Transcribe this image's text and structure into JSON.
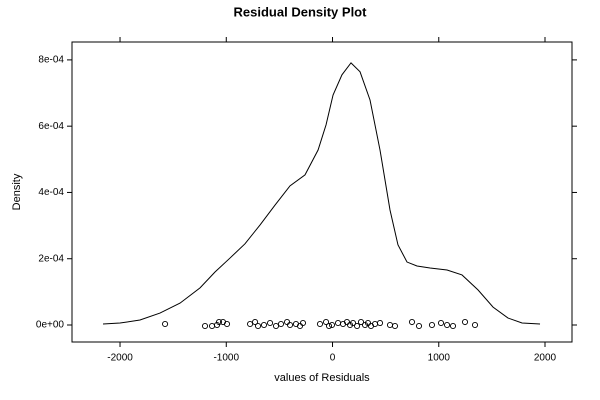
{
  "chart_data": {
    "type": "density",
    "title": "Residual Density Plot",
    "x_label": "values of Residuals",
    "y_label": "Density",
    "color": "#000000",
    "xlim": [
      -2452,
      2254
    ],
    "ylim": [
      -5.13e-05,
      0.000854
    ],
    "xticks": [
      -2000,
      -1000,
      0,
      1000,
      2000
    ],
    "yticks": [
      {
        "value": 0,
        "label": "0e+00"
      },
      {
        "value": 0.0002,
        "label": "2e-04"
      },
      {
        "value": 0.0004,
        "label": "4e-04"
      },
      {
        "value": 0.0006,
        "label": "6e-04"
      },
      {
        "value": 0.0008,
        "label": "8e-04"
      }
    ],
    "curve": {
      "x": [
        -2160,
        -2000,
        -1812,
        -1624,
        -1435,
        -1247,
        -1106,
        -965,
        -824,
        -682,
        -541,
        -400,
        -259,
        -136,
        -61,
        5,
        89,
        174,
        259,
        353,
        447,
        541,
        616,
        701,
        795,
        918,
        1078,
        1219,
        1369,
        1511,
        1652,
        1784,
        1953
      ],
      "y": [
        3e-06,
        6e-06,
        1.5e-05,
        3.6e-05,
        6.6e-05,
        0.000112,
        0.00016,
        0.000202,
        0.000245,
        0.000302,
        0.000362,
        0.00042,
        0.000453,
        0.000528,
        0.000604,
        0.000694,
        0.000755,
        0.000791,
        0.000764,
        0.000679,
        0.000528,
        0.000347,
        0.000242,
        0.00019,
        0.000178,
        0.000172,
        0.000166,
        0.000151,
        0.000106,
        5.4e-05,
        2.1e-05,
        6e-06,
        3e-06
      ]
    },
    "points": {
      "x": [
        -1576,
        -1200,
        -1134,
        -1087,
        -1068,
        -1031,
        -993,
        -776,
        -729,
        -701,
        -645,
        -588,
        -532,
        -485,
        -428,
        -400,
        -344,
        -306,
        -278,
        -118,
        -61,
        -33,
        -5,
        52,
        99,
        136,
        165,
        193,
        231,
        268,
        306,
        334,
        362,
        400,
        447,
        541,
        588,
        748,
        814,
        936,
        1021,
        1078,
        1134,
        1247,
        1341
      ],
      "y": [
        3e-06,
        -3e-06,
        -3e-06,
        0,
        9e-06,
        9e-06,
        3e-06,
        3e-06,
        9e-06,
        -3e-06,
        0,
        6e-06,
        -3e-06,
        3e-06,
        9e-06,
        0,
        3e-06,
        -3e-06,
        6e-06,
        3e-06,
        9e-06,
        -3e-06,
        0,
        6e-06,
        3e-06,
        9e-06,
        0,
        6e-06,
        -3e-06,
        9e-06,
        0,
        6e-06,
        -3e-06,
        3e-06,
        6e-06,
        0,
        -3e-06,
        9e-06,
        -3e-06,
        0,
        6e-06,
        0,
        -3e-06,
        9e-06,
        0
      ]
    }
  }
}
